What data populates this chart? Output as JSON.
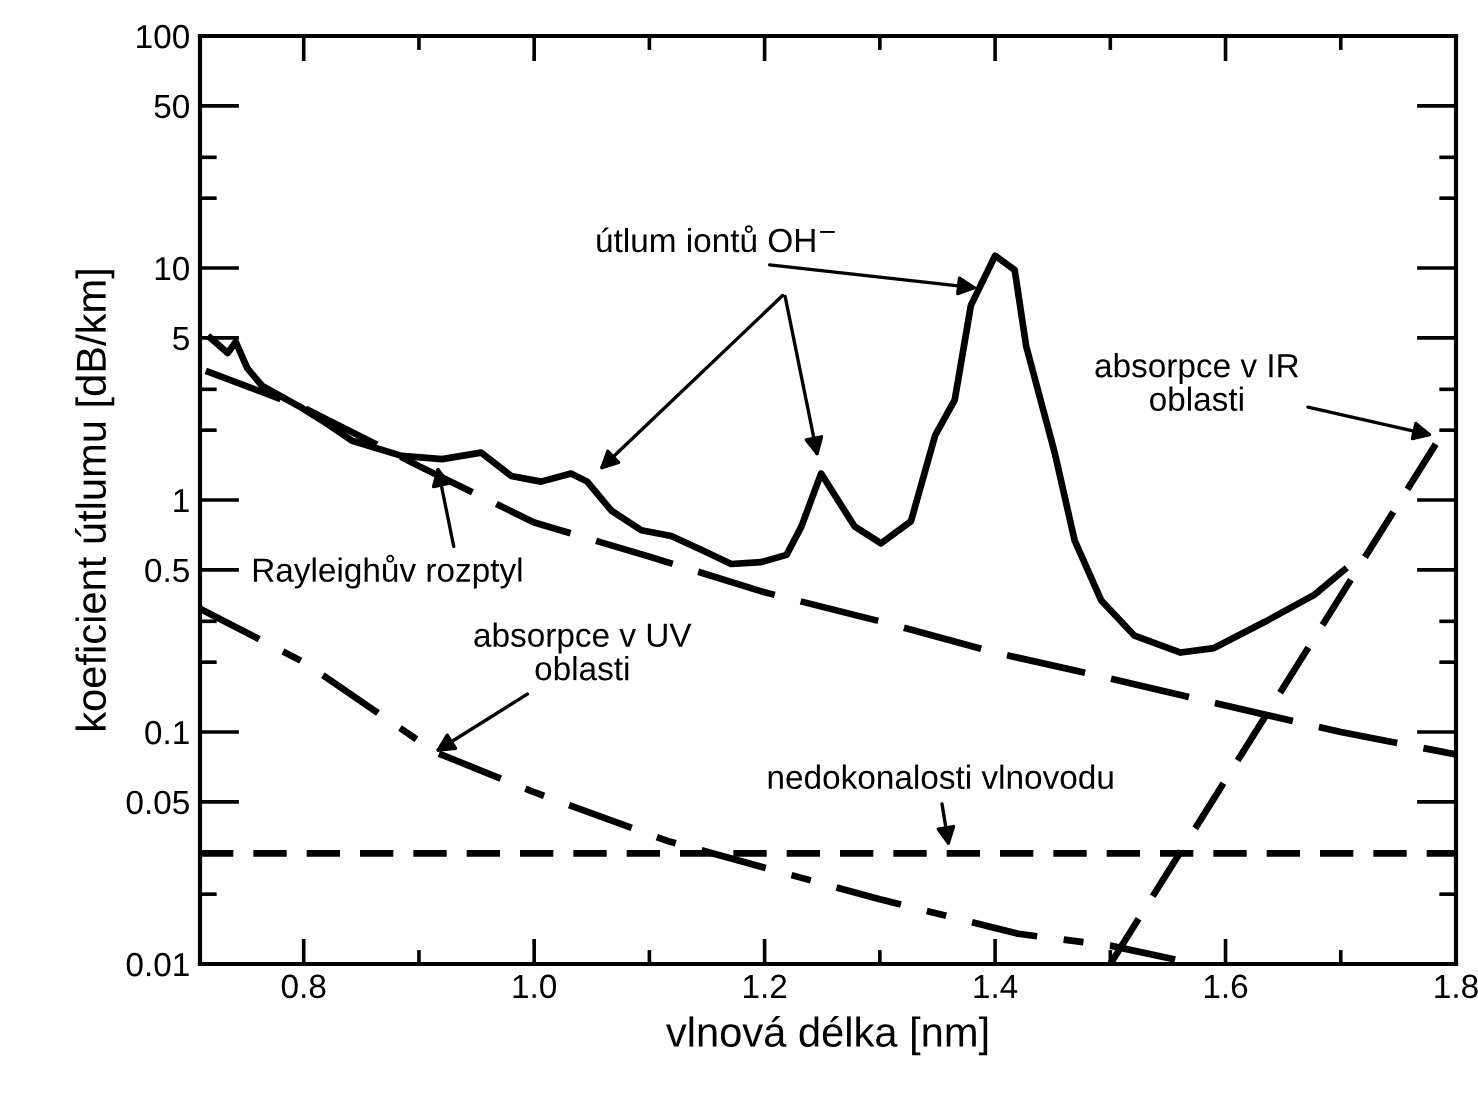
{
  "chart_data": {
    "type": "line",
    "xlabel": "vlnová délka [nm]",
    "ylabel": "koeficient útlumu [dB/km]",
    "log": "y",
    "xlim": [
      0.71,
      1.8
    ],
    "ylim": [
      0.01,
      100
    ],
    "xticks": [
      0.8,
      {
        "value": 0.9,
        "label": null
      },
      {
        "value": 1,
        "label": "1.0"
      },
      {
        "value": 1.1,
        "label": null
      },
      1.2,
      {
        "value": 1.3,
        "label": null
      },
      1.4,
      {
        "value": 1.5,
        "label": null
      },
      1.6,
      {
        "value": 1.7,
        "label": null
      },
      1.8
    ],
    "yticks": [
      0.01,
      {
        "value": 0.02,
        "label": null
      },
      {
        "value": 0.03,
        "label": null
      },
      0.05,
      0.1,
      {
        "value": 0.2,
        "label": null
      },
      {
        "value": 0.3,
        "label": null
      },
      0.5,
      1,
      {
        "value": 2,
        "label": null
      },
      {
        "value": 3,
        "label": null
      },
      5,
      10,
      {
        "value": 20,
        "label": null
      },
      {
        "value": 30,
        "label": null
      },
      50,
      100
    ],
    "grid": false,
    "legend": false,
    "marker": "none",
    "series": [
      {
        "color": "#000000",
        "line_style": "solid",
        "x": [
          0.719,
          0.734,
          0.741,
          0.751,
          0.764,
          0.798,
          0.816,
          0.842,
          0.885,
          0.92,
          0.954,
          0.98,
          1.006,
          1.032,
          1.046,
          1.067,
          1.093,
          1.119,
          1.145,
          1.171,
          1.197,
          1.219,
          1.232,
          1.249,
          1.278,
          1.301,
          1.327,
          1.348,
          1.365,
          1.379,
          1.4,
          1.417,
          1.427,
          1.452,
          1.469,
          1.492,
          1.521,
          1.561,
          1.59,
          1.635,
          1.677,
          1.703
        ],
        "values": [
          5.0,
          4.3,
          4.8,
          3.7,
          3.1,
          2.5,
          2.2,
          1.8,
          1.55,
          1.5,
          1.6,
          1.27,
          1.2,
          1.3,
          1.2,
          0.9,
          0.74,
          0.7,
          0.61,
          0.53,
          0.54,
          0.58,
          0.77,
          1.3,
          0.77,
          0.65,
          0.81,
          1.9,
          2.7,
          6.9,
          11.3,
          9.8,
          4.6,
          1.58,
          0.67,
          0.37,
          0.26,
          0.22,
          0.23,
          0.3,
          0.39,
          0.5
        ]
      },
      {
        "color": "#000000",
        "line_style": "dashed",
        "x": [
          0.715,
          0.8,
          0.9,
          1.0,
          1.1,
          1.2,
          1.3,
          1.4,
          1.5,
          1.6,
          1.7,
          1.8
        ],
        "values": [
          3.6,
          2.5,
          1.4,
          0.8,
          0.57,
          0.4,
          0.3,
          0.22,
          0.17,
          0.13,
          0.1,
          0.08
        ]
      },
      {
        "color": "#000000",
        "line_style": "dashed",
        "x": [
          0.71,
          0.8,
          0.914,
          1.0,
          1.115,
          1.2,
          1.3,
          1.42,
          1.5,
          1.575
        ],
        "values": [
          0.34,
          0.2,
          0.082,
          0.055,
          0.034,
          0.026,
          0.019,
          0.0135,
          0.012,
          0.01
        ]
      },
      {
        "color": "#000000",
        "line_style": "dashed",
        "x": [
          0.71,
          1.8
        ],
        "values": [
          0.03,
          0.03
        ]
      },
      {
        "color": "#000000",
        "line_style": "dashed",
        "x": [
          1.5,
          1.79
        ],
        "values": [
          0.01,
          2
        ]
      }
    ],
    "annotations": [
      {
        "text": "útlum iontů OH$^{−}$",
        "x": 1.385,
        "y": 8.2
      },
      {
        "text": "Rayleighův rozptyl",
        "x": 0.916,
        "y": 1.4
      },
      {
        "text": "absorpce v UV\noblasti",
        "x": 0.914,
        "y": 0.082
      },
      {
        "text": "nedokonalosti vlnovodu",
        "x": 1.36,
        "y": 0.032
      },
      {
        "text": "absorpce v IR\noblasti",
        "x": 1.78,
        "y": 1.9
      }
    ]
  }
}
